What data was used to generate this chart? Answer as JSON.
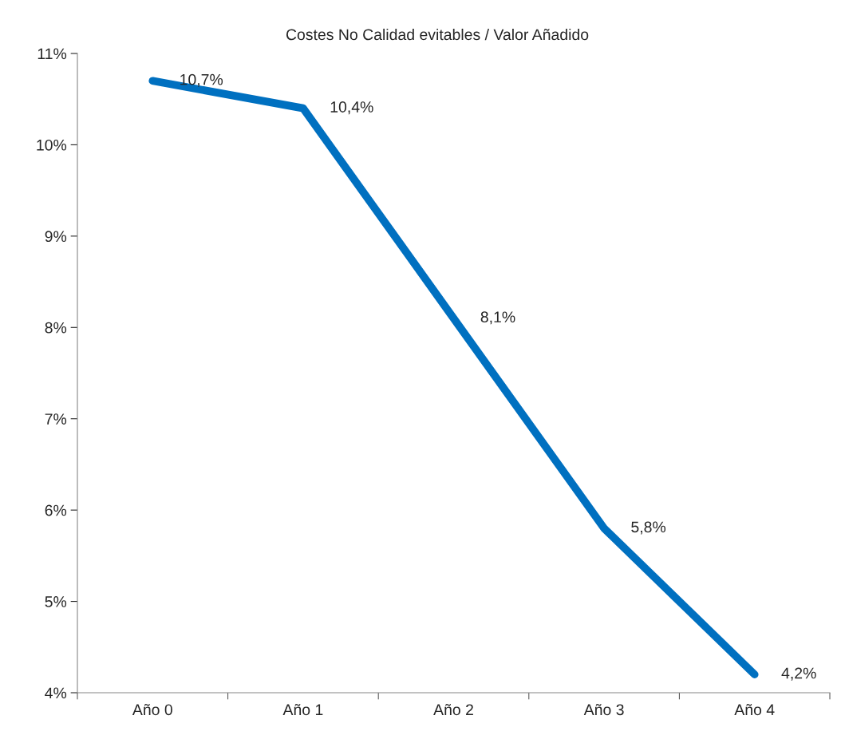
{
  "chart_data": {
    "type": "line",
    "title": "Costes No Calidad evitables / Valor Añadido",
    "categories": [
      "Año 0",
      "Año 1",
      "Año 2",
      "Año 3",
      "Año 4"
    ],
    "series": [
      {
        "color": "#0070c0",
        "values": [
          10.7,
          10.4,
          8.1,
          5.8,
          4.2
        ],
        "value_labels": [
          "10,7%",
          "10,4%",
          "8,1%",
          "5,8%",
          "4,2%"
        ]
      }
    ],
    "ylim": [
      4,
      11
    ],
    "yticks": [
      {
        "value": 4,
        "label": "4%"
      },
      {
        "value": 5,
        "label": "5%"
      },
      {
        "value": 6,
        "label": "6%"
      },
      {
        "value": 7,
        "label": "7%"
      },
      {
        "value": 8,
        "label": "8%"
      },
      {
        "value": 9,
        "label": "9%"
      },
      {
        "value": 10,
        "label": "10%"
      },
      {
        "value": 11,
        "label": "11%"
      }
    ],
    "grid": false,
    "legend": false,
    "line_style": "solid",
    "marker": "none"
  }
}
